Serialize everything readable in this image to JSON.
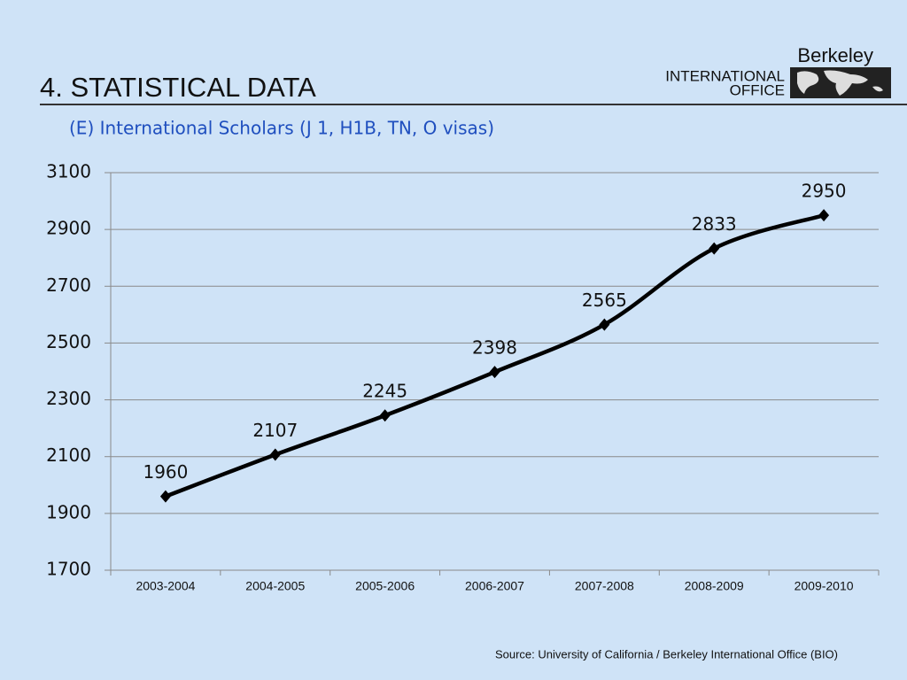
{
  "header": {
    "title": "4. STATISTICAL DATA"
  },
  "logo": {
    "name": "Berkeley",
    "line1": "INTERNATIONAL",
    "line2": "OFFICE"
  },
  "chart_data": {
    "type": "line",
    "title": "(E) International Scholars (J 1, H1B, TN, O visas)",
    "categories": [
      "2003-2004",
      "2004-2005",
      "2005-2006",
      "2006-2007",
      "2007-2008",
      "2008-2009",
      "2009-2010"
    ],
    "values": [
      1960,
      2107,
      2245,
      2398,
      2565,
      2833,
      2950
    ],
    "color": "#000000",
    "ylim": [
      1700,
      3100
    ],
    "yticks": [
      1700,
      1900,
      2100,
      2300,
      2500,
      2700,
      2900,
      3100
    ],
    "grid": true
  },
  "source": "Source:  University of California / Berkeley International Office (BIO)"
}
